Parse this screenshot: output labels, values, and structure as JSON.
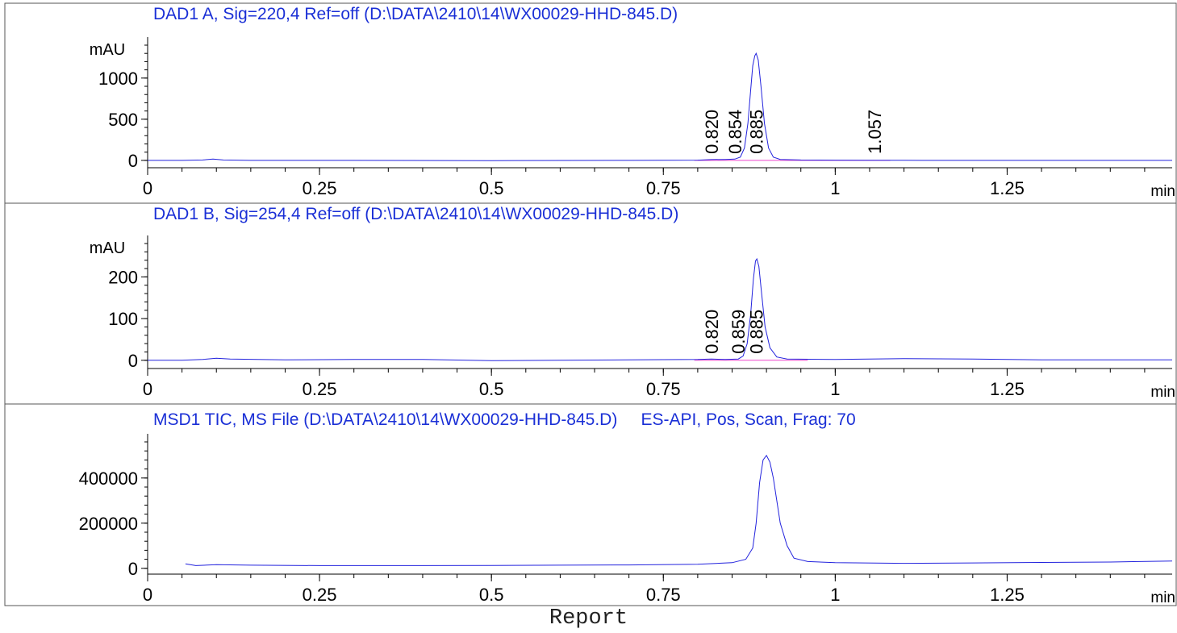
{
  "footer": {
    "label": "Report"
  },
  "colors": {
    "signal": "#2222dd",
    "baseline": "#ee44cc",
    "title": "#1a2fd6",
    "axis": "#000000",
    "frame": "#555555"
  },
  "chart_data": [
    {
      "type": "line",
      "title": "DAD1 A, Sig=220,4 Ref=off (D:\\DATA\\2410\\14\\WX00029-HHD-845.D)",
      "ylabel": "mAU",
      "xlabel": "min",
      "xlim": [
        0,
        1.49
      ],
      "ylim": [
        -60,
        1400
      ],
      "x_ticks": [
        "0",
        "0.25",
        "0.5",
        "0.75",
        "1",
        "1.25"
      ],
      "y_ticks": [
        "0",
        "500",
        "1000"
      ],
      "baseline": [
        0.795,
        1.08
      ],
      "series": [
        {
          "x": [
            0,
            0.05,
            0.08,
            0.095,
            0.11,
            0.15,
            0.3,
            0.5,
            0.7,
            0.8,
            0.82,
            0.84,
            0.854,
            0.862,
            0.868,
            0.873,
            0.877,
            0.88,
            0.883,
            0.885,
            0.888,
            0.892,
            0.897,
            0.903,
            0.91,
            0.92,
            0.95,
            1.0,
            1.057,
            1.1,
            1.3,
            1.49
          ],
          "values": [
            0,
            0,
            5,
            15,
            5,
            0,
            0,
            -3,
            0,
            3,
            10,
            12,
            15,
            40,
            150,
            450,
            850,
            1150,
            1270,
            1300,
            1220,
            900,
            450,
            150,
            40,
            12,
            5,
            3,
            2,
            1,
            0,
            0
          ]
        }
      ],
      "peak_labels": [
        {
          "x": 0.82,
          "text": "0.820"
        },
        {
          "x": 0.854,
          "text": "0.854"
        },
        {
          "x": 0.885,
          "text": "0.885"
        },
        {
          "x": 1.057,
          "text": "1.057"
        }
      ]
    },
    {
      "type": "line",
      "title": "DAD1 B, Sig=254,4 Ref=off (D:\\DATA\\2410\\14\\WX00029-HHD-845.D)",
      "ylabel": "mAU",
      "xlabel": "min",
      "xlim": [
        0,
        1.49
      ],
      "ylim": [
        -12,
        280
      ],
      "x_ticks": [
        "0",
        "0.25",
        "0.5",
        "0.75",
        "1",
        "1.25"
      ],
      "y_ticks": [
        "0",
        "100",
        "200"
      ],
      "baseline": [
        0.795,
        0.96
      ],
      "series": [
        {
          "x": [
            0,
            0.05,
            0.08,
            0.1,
            0.12,
            0.2,
            0.3,
            0.4,
            0.5,
            0.6,
            0.7,
            0.8,
            0.82,
            0.84,
            0.859,
            0.866,
            0.872,
            0.877,
            0.881,
            0.884,
            0.886,
            0.889,
            0.893,
            0.898,
            0.905,
            0.915,
            0.93,
            1.0,
            1.1,
            1.2,
            1.3,
            1.49
          ],
          "values": [
            0,
            0,
            2,
            5,
            3,
            1,
            2,
            2,
            -1,
            0,
            1,
            2,
            3,
            2,
            3,
            10,
            40,
            110,
            195,
            238,
            243,
            225,
            160,
            80,
            30,
            8,
            3,
            2,
            4,
            3,
            1,
            1
          ]
        }
      ],
      "peak_labels": [
        {
          "x": 0.82,
          "text": "0.820"
        },
        {
          "x": 0.859,
          "text": "0.859"
        },
        {
          "x": 0.885,
          "text": "0.885"
        }
      ]
    },
    {
      "type": "line",
      "title": "MSD1 TIC, MS File (D:\\DATA\\2410\\14\\WX00029-HHD-845.D)     ES-API, Pos, Scan, Frag: 70",
      "ylabel": "",
      "xlabel": "min",
      "xlim": [
        0,
        1.49
      ],
      "ylim": [
        -15000,
        560000
      ],
      "x_ticks": [
        "0",
        "0.25",
        "0.5",
        "0.75",
        "1",
        "1.25"
      ],
      "y_ticks": [
        "0",
        "200000",
        "400000"
      ],
      "series": [
        {
          "x": [
            0.055,
            0.07,
            0.1,
            0.15,
            0.25,
            0.4,
            0.5,
            0.6,
            0.7,
            0.8,
            0.85,
            0.87,
            0.88,
            0.885,
            0.89,
            0.895,
            0.9,
            0.905,
            0.91,
            0.915,
            0.92,
            0.93,
            0.94,
            0.96,
            1.0,
            1.1,
            1.2,
            1.3,
            1.4,
            1.49
          ],
          "values": [
            20000,
            12000,
            16000,
            14000,
            12000,
            12000,
            13000,
            14000,
            15000,
            18000,
            25000,
            40000,
            90000,
            200000,
            380000,
            480000,
            500000,
            470000,
            400000,
            300000,
            200000,
            100000,
            45000,
            30000,
            25000,
            22000,
            24000,
            26000,
            28000,
            32000
          ]
        }
      ]
    }
  ]
}
